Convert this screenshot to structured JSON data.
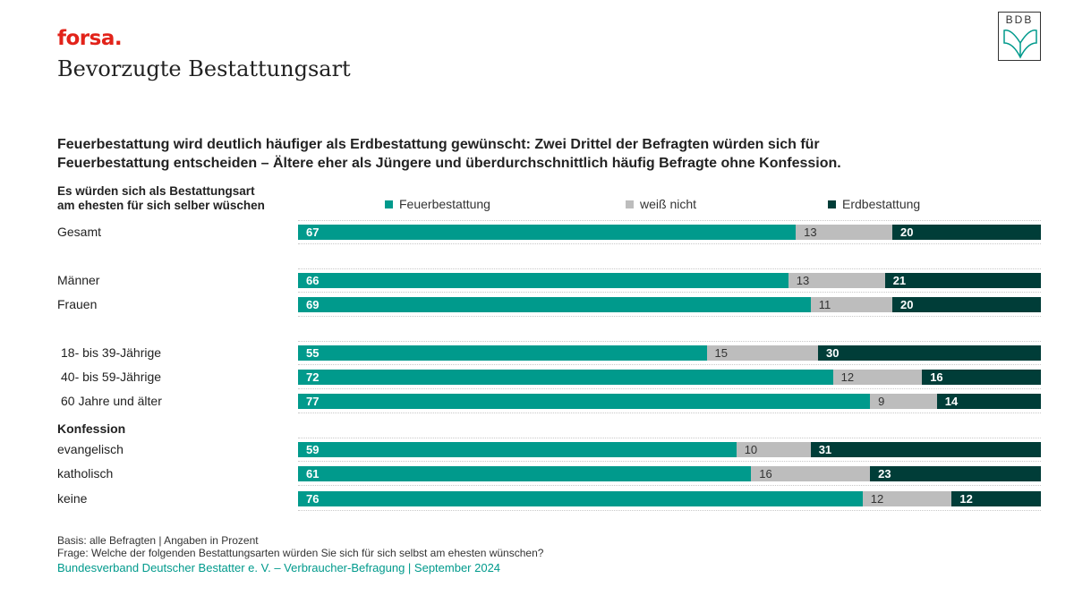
{
  "brand": "forsa.",
  "title": "Bevorzugte Bestattungsart",
  "logo_text": "BDB",
  "headline": [
    "Feuerbestattung wird deutlich häufiger als Erdbestattung gewünscht: Zwei Drittel der Befragten würden sich für",
    "Feuerbestattung entscheiden – Ältere eher als Jüngere und überdurchschnittlich häufig Befragte ohne Konfession."
  ],
  "question": [
    "Es würden sich als Bestattungsart",
    "am ehesten für sich selber wüschen"
  ],
  "colors": {
    "feuer": "#009a8c",
    "weiss": "#bdbdbd",
    "erd": "#003d38",
    "brand": "#e2231a"
  },
  "footer": {
    "basis": "Basis: alle Befragten | Angaben in Prozent",
    "frage": "Frage: Welche der folgenden Bestattungsarten würden Sie sich für sich selbst am ehesten wünschen?",
    "source": "Bundesverband Deutscher Bestatter e. V. – Verbraucher-Befragung | September 2024"
  },
  "chart_data": {
    "type": "bar",
    "orientation": "horizontal-stacked-100",
    "title": "Bevorzugte Bestattungsart",
    "xlabel": "",
    "ylabel": "",
    "xlim": [
      0,
      100
    ],
    "legend_position": "top",
    "series": [
      {
        "name": "Feuerbestattung",
        "values": [
          67,
          66,
          69,
          55,
          72,
          77,
          59,
          61,
          76
        ]
      },
      {
        "name": "weiß nicht",
        "values": [
          13,
          13,
          11,
          15,
          12,
          9,
          10,
          16,
          12
        ]
      },
      {
        "name": "Erdbestattung",
        "values": [
          20,
          21,
          20,
          30,
          16,
          14,
          31,
          23,
          12
        ]
      }
    ],
    "categories": [
      "Gesamt",
      "Männer",
      "Frauen",
      "18- bis 39-Jährige",
      "40- bis 59-Jährige",
      "60 Jahre und älter",
      "evangelisch",
      "katholisch",
      "keine"
    ],
    "groups": [
      {
        "label": "",
        "rows": [
          0
        ]
      },
      {
        "label": "",
        "rows": [
          1,
          2
        ]
      },
      {
        "label": "",
        "rows": [
          3,
          4,
          5
        ]
      },
      {
        "label": "Konfession",
        "rows": [
          6,
          7,
          8
        ]
      }
    ]
  }
}
